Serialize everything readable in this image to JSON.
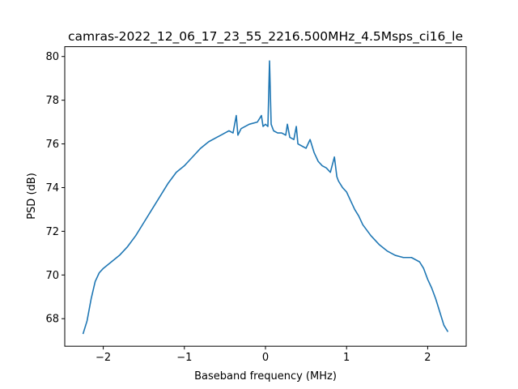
{
  "chart_data": {
    "type": "line",
    "title": "camras-2022_12_06_17_23_55_2216.500MHz_4.5Msps_ci16_le",
    "xlabel": "Baseband frequency (MHz)",
    "ylabel": "PSD (dB)",
    "xlim": [
      -2.475,
      2.475
    ],
    "ylim": [
      66.74,
      80.45
    ],
    "xticks": [
      -2,
      -1,
      0,
      1,
      2
    ],
    "xtick_labels": [
      "−2",
      "−1",
      "0",
      "1",
      "2"
    ],
    "yticks": [
      68,
      70,
      72,
      74,
      76,
      78,
      80
    ],
    "ytick_labels": [
      "68",
      "70",
      "72",
      "74",
      "76",
      "78",
      "80"
    ],
    "grid": false,
    "series": [
      {
        "color": "#1f77b4",
        "x": [
          -2.25,
          -2.2,
          -2.15,
          -2.1,
          -2.05,
          -2.0,
          -1.9,
          -1.8,
          -1.7,
          -1.6,
          -1.5,
          -1.4,
          -1.3,
          -1.2,
          -1.1,
          -1.0,
          -0.95,
          -0.9,
          -0.8,
          -0.7,
          -0.6,
          -0.55,
          -0.5,
          -0.45,
          -0.4,
          -0.36,
          -0.34,
          -0.3,
          -0.2,
          -0.1,
          -0.05,
          -0.03,
          0.0,
          0.03,
          0.05,
          0.07,
          0.1,
          0.15,
          0.2,
          0.25,
          0.27,
          0.3,
          0.35,
          0.38,
          0.4,
          0.45,
          0.5,
          0.55,
          0.6,
          0.65,
          0.7,
          0.75,
          0.8,
          0.85,
          0.88,
          0.9,
          0.95,
          1.0,
          1.05,
          1.1,
          1.15,
          1.2,
          1.3,
          1.4,
          1.5,
          1.6,
          1.7,
          1.8,
          1.9,
          1.95,
          2.0,
          2.05,
          2.1,
          2.15,
          2.2,
          2.25
        ],
        "y": [
          67.3,
          67.9,
          68.9,
          69.7,
          70.1,
          70.3,
          70.6,
          70.9,
          71.3,
          71.8,
          72.4,
          73.0,
          73.6,
          74.2,
          74.7,
          75.0,
          75.2,
          75.4,
          75.8,
          76.1,
          76.3,
          76.4,
          76.5,
          76.6,
          76.5,
          77.3,
          76.4,
          76.7,
          76.9,
          77.0,
          77.3,
          76.8,
          76.9,
          76.8,
          79.8,
          76.9,
          76.6,
          76.5,
          76.5,
          76.4,
          76.9,
          76.3,
          76.2,
          76.8,
          76.0,
          75.9,
          75.8,
          76.2,
          75.6,
          75.2,
          75.0,
          74.9,
          74.7,
          75.4,
          74.5,
          74.3,
          74.0,
          73.8,
          73.4,
          73.0,
          72.7,
          72.3,
          71.8,
          71.4,
          71.1,
          70.9,
          70.8,
          70.8,
          70.6,
          70.3,
          69.8,
          69.4,
          68.9,
          68.3,
          67.7,
          67.4
        ]
      }
    ]
  }
}
